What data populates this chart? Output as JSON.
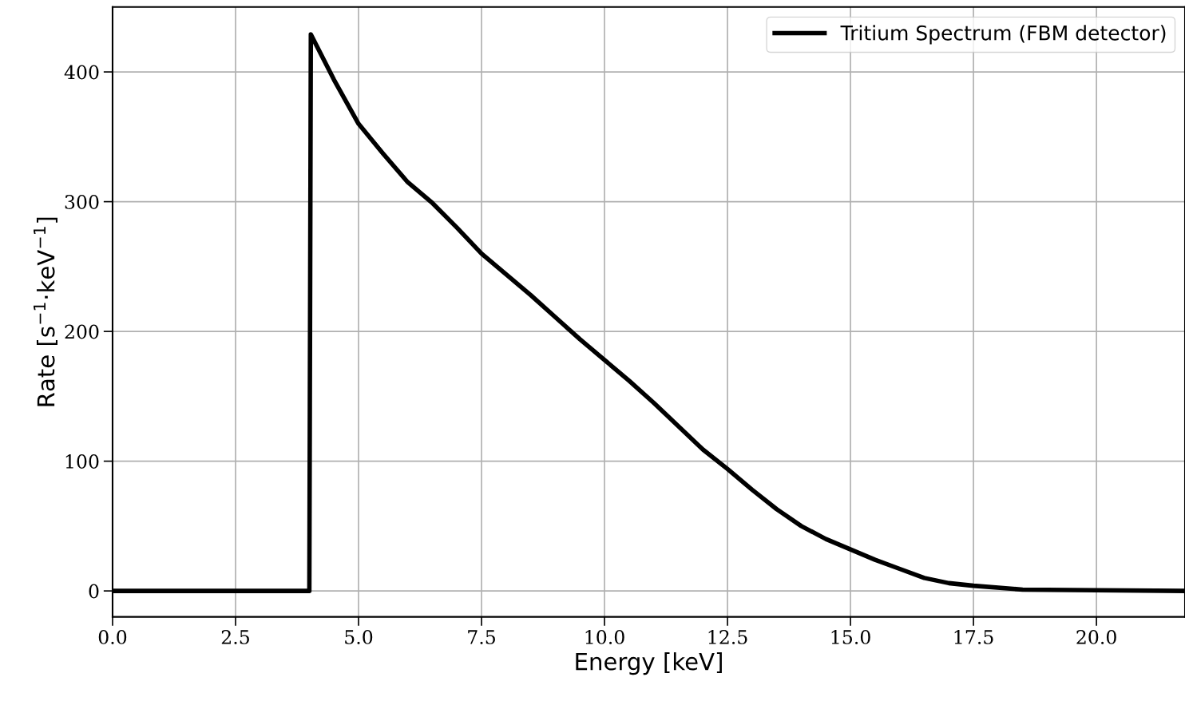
{
  "chart_data": {
    "type": "line",
    "xlabel": "Energy [keV]",
    "ylabel": "Rate [s$^{−1}$·keV$^{−1}$]",
    "xlim": [
      0,
      21.8
    ],
    "ylim": [
      -20,
      450
    ],
    "xticks": [
      {
        "value": 0,
        "label": "0.0"
      },
      {
        "value": 2.5,
        "label": "2.5"
      },
      {
        "value": 5,
        "label": "5.0"
      },
      {
        "value": 7.5,
        "label": "7.5"
      },
      {
        "value": 10,
        "label": "10.0"
      },
      {
        "value": 12.5,
        "label": "12.5"
      },
      {
        "value": 15,
        "label": "15.0"
      },
      {
        "value": 17.5,
        "label": "17.5"
      },
      {
        "value": 20,
        "label": "20.0"
      }
    ],
    "yticks": [
      0,
      100,
      200,
      300,
      400
    ],
    "grid": true,
    "legend": "top right",
    "marker": "none",
    "line_style": "solid",
    "series": [
      {
        "name": "Tritium Spectrum (FBM detector)",
        "color": "#000000",
        "x": [
          0,
          4.0,
          4.03,
          4.5,
          5.0,
          5.5,
          6.0,
          6.5,
          7.0,
          7.5,
          8.0,
          8.5,
          9.0,
          9.5,
          10.0,
          10.5,
          11.0,
          11.5,
          12.0,
          12.5,
          13.0,
          13.5,
          14.0,
          14.5,
          15.0,
          15.5,
          16.0,
          16.5,
          17.0,
          17.5,
          18.5,
          20.0,
          21.8
        ],
        "values": [
          0,
          0,
          429,
          394,
          360,
          337,
          315,
          299,
          280,
          260,
          244,
          228,
          211,
          194,
          178,
          162,
          145,
          127,
          109,
          94,
          78,
          63,
          50,
          40,
          32,
          24,
          17,
          10,
          6,
          4,
          1,
          0.5,
          0
        ]
      }
    ]
  }
}
